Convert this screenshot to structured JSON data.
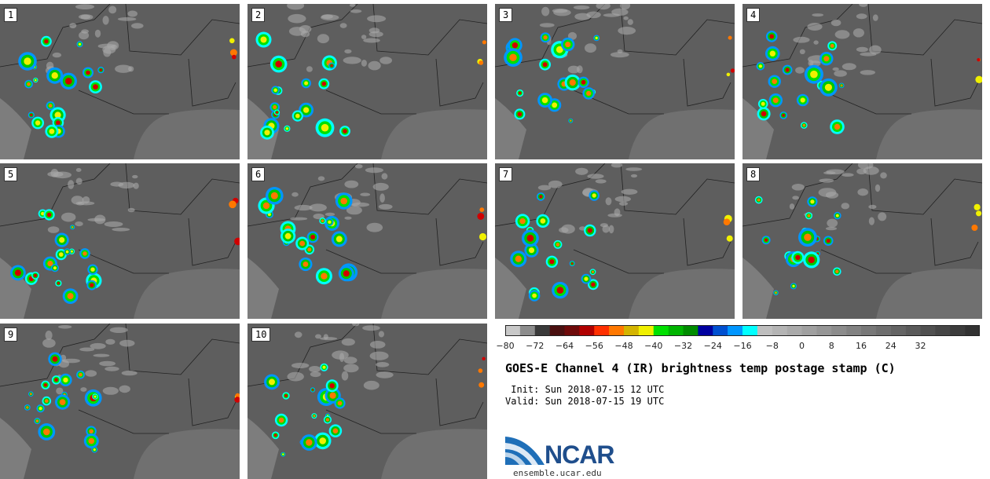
{
  "panels": [
    {
      "label": "1"
    },
    {
      "label": "2"
    },
    {
      "label": "3"
    },
    {
      "label": "4"
    },
    {
      "label": "5"
    },
    {
      "label": "6"
    },
    {
      "label": "7"
    },
    {
      "label": "8"
    },
    {
      "label": "9"
    },
    {
      "label": "10"
    }
  ],
  "colorbar": {
    "ticks": [
      "−80",
      "−72",
      "−64",
      "−56",
      "−48",
      "−40",
      "−32",
      "−24",
      "−16",
      "−8",
      "0",
      "8",
      "16",
      "24",
      "32"
    ],
    "colors": [
      "#c8c8c8",
      "#8c8c8c",
      "#3a3a3a",
      "#4a1010",
      "#6e0a0a",
      "#b00000",
      "#ff3000",
      "#ff7800",
      "#d4b400",
      "#f0f000",
      "#00e000",
      "#00b400",
      "#008c00",
      "#0000a0",
      "#0050d0",
      "#0096ff",
      "#00ffff",
      "#bebebe",
      "#b4b4b4",
      "#aaaaaa",
      "#a0a0a0",
      "#969696",
      "#8c8c8c",
      "#828282",
      "#787878",
      "#6e6e6e",
      "#646464",
      "#5a5a5a",
      "#505050",
      "#464646",
      "#3c3c3c",
      "#323232"
    ]
  },
  "title": "GOES-E Channel 4 (IR) brightness temp postage stamp (C)",
  "init": " Init: Sun 2018-07-15 12 UTC",
  "valid": "Valid: Sun 2018-07-15 19 UTC",
  "logo_text": "NCAR",
  "url": "ensemble.ucar.edu"
}
